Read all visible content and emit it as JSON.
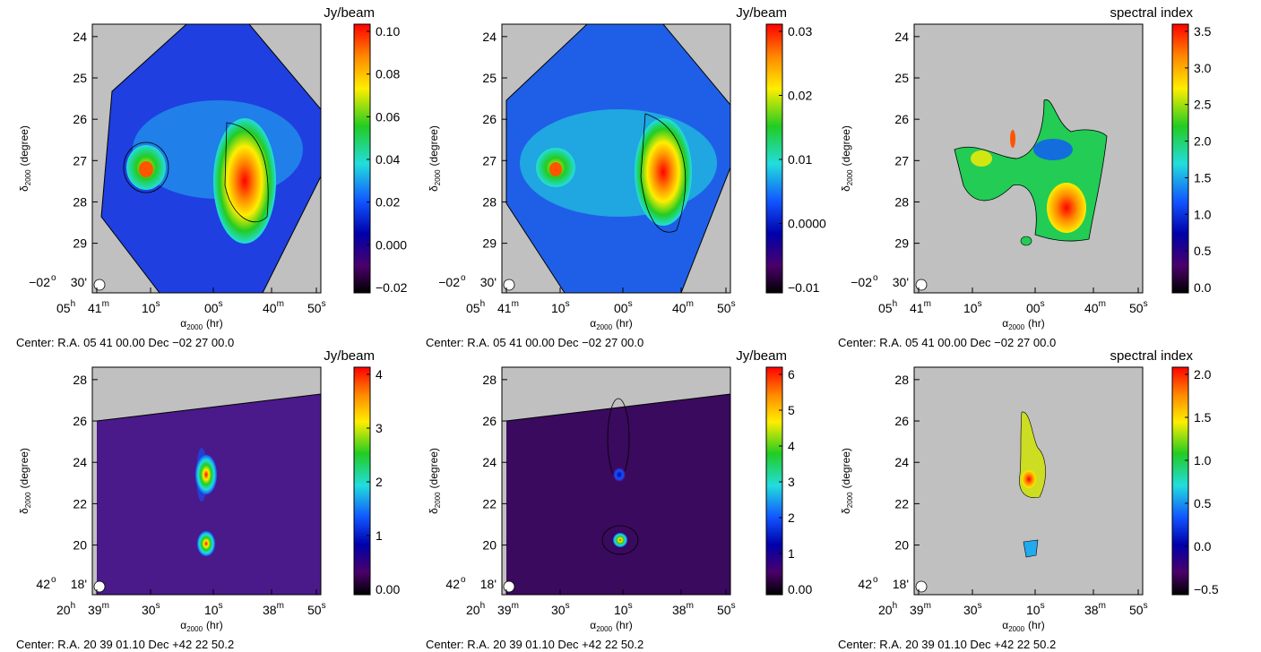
{
  "panels": [
    {
      "id": "p1",
      "cbar_title": "Jy/beam",
      "cbar_ticks": [
        "0.10",
        "0.08",
        "0.06",
        "0.04",
        "0.02",
        "0.000",
        "−0.02"
      ],
      "y_ticks": [
        "24",
        "25",
        "26",
        "27",
        "28",
        "29"
      ],
      "y_origin": {
        "main": "−02",
        "deg": "o",
        "min": "30'"
      },
      "x_ticks": [
        {
          "main": "05",
          "sup": "h"
        },
        {
          "main": "41",
          "sup": "m"
        },
        {
          "main": "10",
          "sup": "s"
        },
        {
          "main": "00",
          "sup": "s"
        },
        {
          "main": "40",
          "sup": "m"
        },
        {
          "main": "50",
          "sup": "s"
        }
      ],
      "x_label": "α",
      "x_label_sub": "2000",
      "x_label_unit": "(hr)",
      "y_label": "δ",
      "y_label_sub": "2000",
      "y_label_unit": "(degree)",
      "center": "Center:  R.A. 05 41 00.00     Dec  −02 27 00.0",
      "colormap": "rainbow-diverging",
      "cbar_colors": [
        "#ff0000",
        "#ff8800",
        "#ffee00",
        "#22cc22",
        "#22dddd",
        "#1155ff",
        "#0000aa",
        "#4b006b",
        "#000000"
      ]
    },
    {
      "id": "p2",
      "cbar_title": "Jy/beam",
      "cbar_ticks": [
        "0.03",
        "0.02",
        "0.01",
        "0.0000",
        "−0.01"
      ],
      "y_ticks": [
        "24",
        "25",
        "26",
        "27",
        "28",
        "29"
      ],
      "y_origin": {
        "main": "−02",
        "deg": "o",
        "min": "30'"
      },
      "x_ticks": [
        {
          "main": "05",
          "sup": "h"
        },
        {
          "main": "41",
          "sup": "m"
        },
        {
          "main": "10",
          "sup": "s"
        },
        {
          "main": "00",
          "sup": "s"
        },
        {
          "main": "40",
          "sup": "m"
        },
        {
          "main": "50",
          "sup": "s"
        }
      ],
      "x_label": "α",
      "x_label_sub": "2000",
      "x_label_unit": "(hr)",
      "y_label": "δ",
      "y_label_sub": "2000",
      "y_label_unit": "(degree)",
      "center": "Center:  R.A. 05 41 00.00     Dec  −02 27 00.0"
    },
    {
      "id": "p3",
      "cbar_title": "spectral index",
      "cbar_ticks": [
        "3.5",
        "3.0",
        "2.5",
        "2.0",
        "1.5",
        "1.0",
        "0.5",
        "0.0"
      ],
      "y_ticks": [
        "24",
        "25",
        "26",
        "27",
        "28",
        "29"
      ],
      "y_origin": {
        "main": "−02",
        "deg": "o",
        "min": "30'"
      },
      "x_ticks": [
        {
          "main": "05",
          "sup": "h"
        },
        {
          "main": "41",
          "sup": "m"
        },
        {
          "main": "10",
          "sup": "s"
        },
        {
          "main": "00",
          "sup": "s"
        },
        {
          "main": "40",
          "sup": "m"
        },
        {
          "main": "50",
          "sup": "s"
        }
      ],
      "x_label": "α",
      "x_label_sub": "2000",
      "x_label_unit": "(hr)",
      "y_label": "δ",
      "y_label_sub": "2000",
      "y_label_unit": "(degree)",
      "center": "Center:  R.A. 05 41 00.00     Dec  −02 27 00.0"
    },
    {
      "id": "p4",
      "cbar_title": "Jy/beam",
      "cbar_ticks": [
        "4",
        "3",
        "2",
        "1",
        "0.00"
      ],
      "y_ticks": [
        "28",
        "26",
        "24",
        "22",
        "20"
      ],
      "y_origin": {
        "main": "42",
        "deg": "o",
        "min": "18'"
      },
      "x_ticks": [
        {
          "main": "20",
          "sup": "h"
        },
        {
          "main": "39",
          "sup": "m"
        },
        {
          "main": "30",
          "sup": "s"
        },
        {
          "main": "10",
          "sup": "s"
        },
        {
          "main": "38",
          "sup": "m"
        },
        {
          "main": "50",
          "sup": "s"
        }
      ],
      "x_label": "α",
      "x_label_sub": "2000",
      "x_label_unit": "(hr)",
      "y_label": "δ",
      "y_label_sub": "2000",
      "y_label_unit": "(degree)",
      "center": "Center:  R.A. 20 39 01.10     Dec  +42 22 50.2"
    },
    {
      "id": "p5",
      "cbar_title": "Jy/beam",
      "cbar_ticks": [
        "6",
        "5",
        "4",
        "3",
        "2",
        "1",
        "0.00"
      ],
      "y_ticks": [
        "28",
        "26",
        "24",
        "22",
        "20"
      ],
      "y_origin": {
        "main": "42",
        "deg": "o",
        "min": "18'"
      },
      "x_ticks": [
        {
          "main": "20",
          "sup": "h"
        },
        {
          "main": "39",
          "sup": "m"
        },
        {
          "main": "30",
          "sup": "s"
        },
        {
          "main": "10",
          "sup": "s"
        },
        {
          "main": "38",
          "sup": "m"
        },
        {
          "main": "50",
          "sup": "s"
        }
      ],
      "x_label": "α",
      "x_label_sub": "2000",
      "x_label_unit": "(hr)",
      "y_label": "δ",
      "y_label_sub": "2000",
      "y_label_unit": "(degree)",
      "center": "Center:  R.A. 20 39 01.10     Dec  +42 22 50.2"
    },
    {
      "id": "p6",
      "cbar_title": "spectral index",
      "cbar_ticks": [
        "2.0",
        "1.5",
        "1.0",
        "0.5",
        "0.0",
        "−0.5"
      ],
      "y_ticks": [
        "28",
        "26",
        "24",
        "22",
        "20"
      ],
      "y_origin": {
        "main": "42",
        "deg": "o",
        "min": "18'"
      },
      "x_ticks": [
        {
          "main": "20",
          "sup": "h"
        },
        {
          "main": "39",
          "sup": "m"
        },
        {
          "main": "30",
          "sup": "s"
        },
        {
          "main": "10",
          "sup": "s"
        },
        {
          "main": "38",
          "sup": "m"
        },
        {
          "main": "50",
          "sup": "s"
        }
      ],
      "x_label": "α",
      "x_label_sub": "2000",
      "x_label_unit": "(hr)",
      "y_label": "δ",
      "y_label_sub": "2000",
      "y_label_unit": "(degree)",
      "center": "Center:  R.A. 20 39 01.10     Dec  +42 22 50.2"
    }
  ],
  "colors": {
    "background_blank": "#c0c0c0",
    "colorbar_rainbow": [
      "#ff0000",
      "#ff8800",
      "#ffee00",
      "#22cc22",
      "#22dddd",
      "#1155ff",
      "#0000aa",
      "#4b006b",
      "#000000"
    ]
  }
}
